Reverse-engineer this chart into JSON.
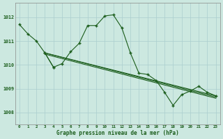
{
  "line_main": {
    "x": [
      0,
      1,
      2,
      3,
      4,
      5,
      6,
      7,
      8,
      9,
      10,
      11,
      12,
      13,
      14,
      15,
      16,
      17,
      18,
      19,
      20,
      21,
      22,
      23
    ],
    "y": [
      1011.7,
      1011.3,
      null,
      null,
      null,
      null,
      null,
      null,
      null,
      null,
      1012.05,
      1012.1,
      1011.55,
      1010.5,
      1009.65,
      1009.6,
      1009.35,
      1008.85,
      1008.3,
      1008.75,
      1008.9,
      1009.1,
      1008.85,
      1008.7
    ]
  },
  "line_short": {
    "x": [
      0,
      1,
      2,
      3,
      4
    ],
    "y": [
      1011.7,
      1011.3,
      1011.0,
      1010.5,
      1009.9
    ]
  },
  "line_mid1": {
    "x": [
      3,
      4,
      5,
      6,
      7,
      8,
      9,
      10,
      11,
      12,
      13,
      14,
      15,
      16,
      17,
      18,
      19,
      20,
      21,
      22,
      23
    ],
    "y": [
      1010.5,
      1010.5,
      1010.35,
      1010.55,
      1010.85,
      1011.65,
      1011.65,
      1012.05,
      1012.1,
      1011.55,
      1010.5,
      1009.65,
      1009.6,
      1009.35,
      1008.85,
      1008.3,
      1008.75,
      1008.9,
      1009.1,
      1008.85,
      1008.7
    ]
  },
  "line_diag1": {
    "x": [
      3,
      23
    ],
    "y": [
      1010.5,
      1008.7
    ]
  },
  "line_diag2": {
    "x": [
      3,
      23
    ],
    "y": [
      1010.5,
      1008.65
    ]
  },
  "line_diag3": {
    "x": [
      3,
      23
    ],
    "y": [
      1010.45,
      1008.6
    ]
  },
  "line_arc": {
    "x": [
      3,
      4,
      5,
      6,
      7,
      8,
      9,
      10,
      11,
      12,
      13,
      14,
      15,
      16,
      17,
      18,
      19,
      20,
      21,
      22,
      23
    ],
    "y": [
      1010.5,
      1009.9,
      1010.05,
      1010.55,
      1010.9,
      1011.65,
      1011.65,
      1012.05,
      1012.1,
      1011.55,
      1010.5,
      1009.65,
      1009.6,
      1009.35,
      1008.85,
      1008.3,
      1008.75,
      1008.9,
      1009.1,
      1008.85,
      1008.7
    ]
  },
  "bg_color": "#cce8e0",
  "line_color": "#1a5c1a",
  "grid_color": "#aacece",
  "ylabel_ticks": [
    1008,
    1009,
    1010,
    1011,
    1012
  ],
  "xlabel_ticks": [
    0,
    1,
    2,
    3,
    4,
    5,
    6,
    7,
    8,
    9,
    10,
    11,
    12,
    13,
    14,
    15,
    16,
    17,
    18,
    19,
    20,
    21,
    22,
    23
  ],
  "xlabel": "Graphe pression niveau de la mer (hPa)",
  "ylim": [
    1007.5,
    1012.6
  ],
  "xlim": [
    -0.5,
    23.5
  ]
}
